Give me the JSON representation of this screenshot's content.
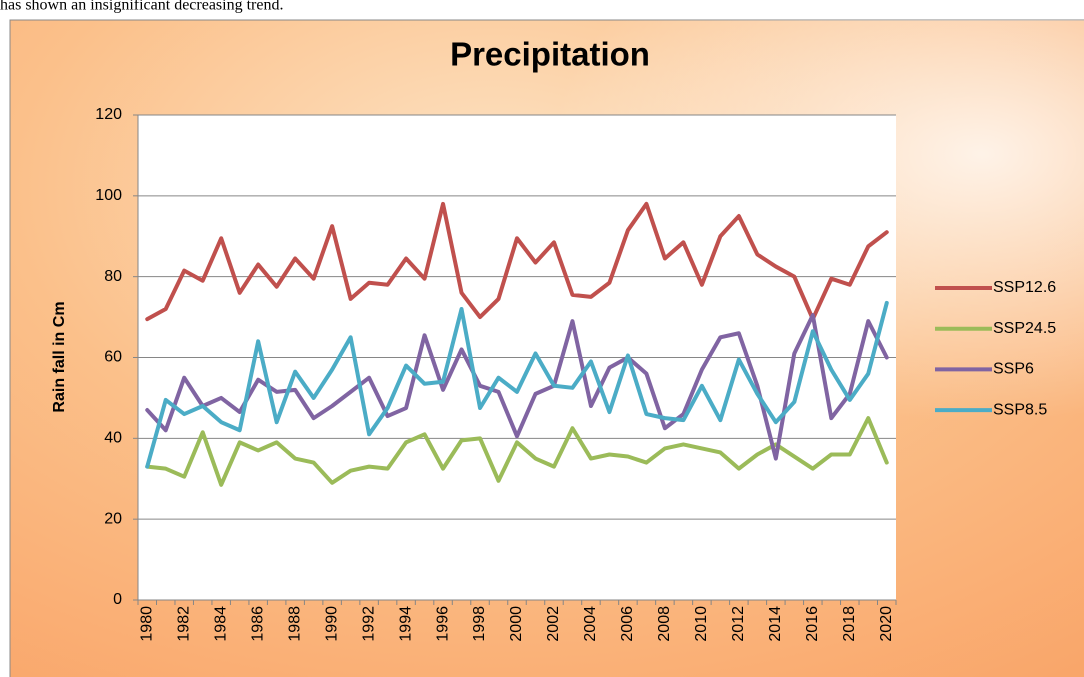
{
  "page_text": "has shown an insignificant decreasing trend.",
  "chart_data": {
    "type": "line",
    "title": "Precipitation",
    "y_label": "Rain fall in Cm",
    "categories": [
      "1980",
      null,
      "1982",
      null,
      "1984",
      null,
      "1986",
      null,
      "1988",
      null,
      "1990",
      null,
      "1992",
      null,
      "1994",
      null,
      "1996",
      null,
      "1998",
      null,
      "2000",
      null,
      "2002",
      null,
      "2004",
      null,
      "2006",
      null,
      "2008",
      null,
      "2010",
      null,
      "2012",
      null,
      "2014",
      null,
      "2016",
      null,
      "2018",
      null,
      "2020"
    ],
    "series": [
      {
        "name": "SSP12.6",
        "color": "#c0504d",
        "values": [
          69.5,
          72,
          81.5,
          79,
          89.5,
          76,
          83,
          77.5,
          84.5,
          79.5,
          92.5,
          74.5,
          78.5,
          78,
          84.5,
          79.5,
          98,
          76,
          70,
          74.5,
          89.5,
          83.5,
          88.5,
          75.5,
          75,
          78.5,
          91.5,
          98,
          84.5,
          88.5,
          78,
          90,
          95,
          85.5,
          82.5,
          80,
          69.5,
          79.5,
          78,
          87.5,
          91
        ]
      },
      {
        "name": "SSP24.5",
        "color": "#9bbb59",
        "values": [
          33,
          32.5,
          30.5,
          41.5,
          28.5,
          39,
          37,
          39,
          35,
          34,
          29,
          32,
          33,
          32.5,
          39,
          41,
          32.5,
          39.5,
          40,
          29.5,
          39,
          35,
          33,
          42.5,
          35,
          36,
          35.5,
          34,
          37.5,
          38.5,
          37.5,
          36.5,
          32.5,
          36,
          38.5,
          35.5,
          32.5,
          36,
          36,
          45,
          34
        ]
      },
      {
        "name": "SSP6",
        "color": "#8064a2",
        "values": [
          47,
          42,
          55,
          48,
          50,
          46.5,
          54.5,
          51.5,
          52,
          45,
          48,
          51.5,
          55,
          45.5,
          47.5,
          65.5,
          52,
          62,
          53,
          51.5,
          40.5,
          51,
          53,
          69,
          48,
          57.5,
          60,
          56,
          42.5,
          46,
          57,
          65,
          66,
          53,
          35,
          61,
          70.5,
          45,
          51,
          69,
          60
        ]
      },
      {
        "name": "SSP8.5",
        "color": "#4bacc6",
        "values": [
          33,
          49.5,
          46,
          48,
          44,
          42,
          64,
          44,
          56.5,
          50,
          57,
          65,
          41,
          47.5,
          58,
          53.5,
          54,
          72,
          47.5,
          55,
          51.5,
          61,
          53,
          52.5,
          59,
          46.5,
          60.5,
          46,
          45,
          44.5,
          53,
          44.5,
          59.5,
          51,
          44,
          49,
          66.5,
          57,
          49.5,
          56,
          73.5
        ]
      }
    ],
    "ylim": [
      0,
      120
    ],
    "yticks": [
      0,
      20,
      40,
      60,
      80,
      100,
      120
    ],
    "grid": true,
    "legend": "right"
  }
}
